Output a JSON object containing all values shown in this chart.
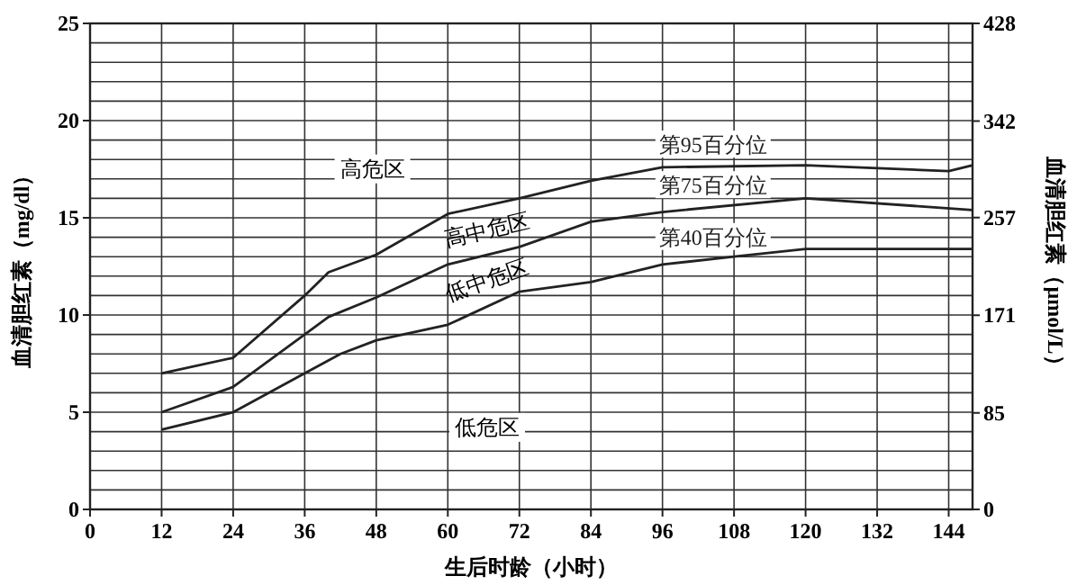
{
  "chart_data": {
    "type": "line",
    "xlabel": "生后时龄（小时）",
    "ylabel": "血清胆红素（mg/dl）",
    "y2label": "血清胆红素（µmol/L）",
    "xlim": [
      0,
      148
    ],
    "xticks": [
      0,
      12,
      24,
      36,
      48,
      60,
      72,
      84,
      96,
      108,
      120,
      132,
      144
    ],
    "ylim": [
      0,
      25
    ],
    "yticks": [
      0,
      {
        "value": 1,
        "label": null
      },
      {
        "value": 2,
        "label": null
      },
      {
        "value": 3,
        "label": null
      },
      {
        "value": 4,
        "label": null
      },
      5,
      {
        "value": 6,
        "label": null
      },
      {
        "value": 7,
        "label": null
      },
      {
        "value": 8,
        "label": null
      },
      {
        "value": 9,
        "label": null
      },
      10,
      {
        "value": 11,
        "label": null
      },
      {
        "value": 12,
        "label": null
      },
      {
        "value": 13,
        "label": null
      },
      {
        "value": 14,
        "label": null
      },
      15,
      {
        "value": 16,
        "label": null
      },
      {
        "value": 17,
        "label": null
      },
      {
        "value": 18,
        "label": null
      },
      {
        "value": 19,
        "label": null
      },
      20,
      {
        "value": 21,
        "label": null
      },
      {
        "value": 22,
        "label": null
      },
      {
        "value": 23,
        "label": null
      },
      {
        "value": 24,
        "label": null
      },
      25
    ],
    "y2lim": [
      0,
      428
    ],
    "y2ticks": [
      0,
      85,
      171,
      257,
      342,
      428
    ],
    "grid": true,
    "marker": "none",
    "line_style": "solid",
    "series": [
      {
        "name": "第95百分位",
        "color": "#222222",
        "x": [
          12,
          24,
          36,
          40,
          48,
          60,
          72,
          84,
          96,
          120,
          144,
          148
        ],
        "values": [
          7,
          7.8,
          11,
          12.2,
          13.1,
          15.2,
          16,
          16.9,
          17.6,
          17.7,
          17.4,
          17.7
        ]
      },
      {
        "name": "第75百分位",
        "color": "#222222",
        "x": [
          12,
          24,
          36,
          40,
          48,
          60,
          72,
          84,
          96,
          120,
          148
        ],
        "values": [
          5,
          6.3,
          9,
          9.9,
          10.9,
          12.6,
          13.5,
          14.8,
          15.3,
          16,
          15.4
        ]
      },
      {
        "name": "第40百分位",
        "color": "#222222",
        "x": [
          12,
          24,
          36,
          42,
          48,
          60,
          72,
          84,
          96,
          108,
          120,
          148
        ],
        "values": [
          4.1,
          5,
          7,
          8,
          8.7,
          9.5,
          11.2,
          11.7,
          12.6,
          13,
          13.4,
          13.4
        ]
      }
    ],
    "annotations": [
      "高危区",
      "高中危区",
      "低中危区",
      "低危区"
    ]
  }
}
